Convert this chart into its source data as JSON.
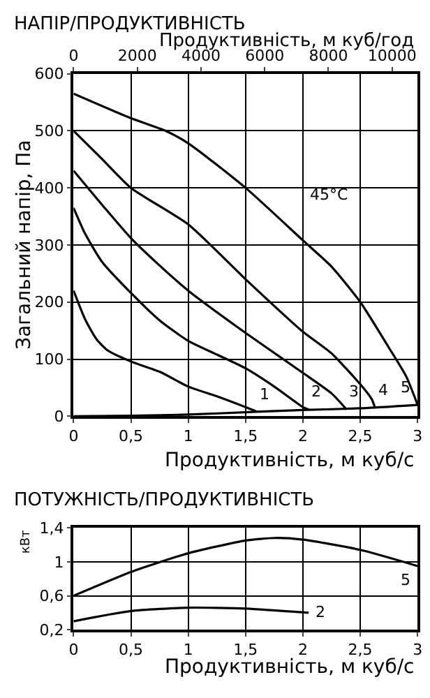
{
  "chart_data": [
    {
      "type": "line",
      "title": "НАПІР/ПРОДУКТИВНІСТЬ",
      "xlabel": "Продуктивність, м куб/с",
      "x2label": "Продуктивність, м куб/год",
      "ylabel": "Загальний напір, Па",
      "xlim": [
        0,
        3
      ],
      "xticks": [
        0,
        {
          "value": 0.5,
          "label": "0,5"
        },
        1,
        {
          "value": 1.5,
          "label": "1,5"
        },
        2,
        {
          "value": 2.5,
          "label": "2,5"
        },
        3
      ],
      "x2lim": [
        0,
        10800
      ],
      "x2ticks": [
        0,
        2000,
        4000,
        6000,
        8000,
        10000
      ],
      "ylim": [
        0,
        600
      ],
      "yticks": [
        0,
        100,
        200,
        300,
        400,
        500,
        600
      ],
      "grid": true,
      "legend": false,
      "marker": "none",
      "line_style": "solid",
      "annotations": [
        "45°C"
      ],
      "series": [
        {
          "name": "1",
          "color": "#000000",
          "x": [
            0,
            0.1,
            0.2,
            0.3,
            0.5,
            0.75,
            1,
            1.25,
            1.5,
            1.6
          ],
          "values": [
            220,
            170,
            135,
            115,
            96,
            78,
            52,
            35,
            16,
            8
          ]
        },
        {
          "name": "2",
          "color": "#000000",
          "x": [
            0,
            0.1,
            0.25,
            0.5,
            0.75,
            1,
            1.25,
            1.5,
            1.75,
            2.0,
            2.05
          ],
          "values": [
            365,
            320,
            270,
            216,
            168,
            132,
            108,
            84,
            52,
            16,
            12
          ]
        },
        {
          "name": "3",
          "color": "#000000",
          "x": [
            0,
            0.25,
            0.5,
            0.75,
            1,
            1.5,
            2,
            2.25,
            2.38
          ],
          "values": [
            430,
            370,
            312,
            264,
            220,
            146,
            76,
            40,
            12
          ]
        },
        {
          "name": "4",
          "color": "#000000",
          "x": [
            0,
            0.25,
            0.5,
            1,
            1.5,
            2,
            2.25,
            2.5,
            2.6,
            2.63
          ],
          "values": [
            500,
            450,
            400,
            336,
            240,
            148,
            110,
            56,
            30,
            14
          ]
        },
        {
          "name": "5",
          "color": "#000000",
          "x": [
            0,
            0.5,
            0.8,
            1,
            1.5,
            2,
            2.25,
            2.5,
            2.75,
            2.9,
            3
          ],
          "values": [
            565,
            522,
            500,
            478,
            400,
            308,
            262,
            200,
            120,
            70,
            20
          ]
        },
        {
          "color": "#000000",
          "x": [
            0,
            0.5,
            1,
            1.6,
            2,
            2.5,
            3
          ],
          "values": [
            0,
            1,
            3,
            8,
            11,
            14,
            20
          ]
        }
      ]
    },
    {
      "type": "line",
      "title": "ПОТУЖНІСТЬ/ПРОДУКТИВНІСТЬ",
      "xlabel": "Продуктивність, м куб/с",
      "ylabel": "кВт",
      "xlim": [
        0,
        3
      ],
      "xticks": [
        0,
        {
          "value": 0.5,
          "label": "0,5"
        },
        1,
        {
          "value": 1.5,
          "label": "1,5"
        },
        2,
        {
          "value": 2.5,
          "label": "2,5"
        },
        3
      ],
      "ylim": [
        0.2,
        1.4
      ],
      "yticks": [
        {
          "value": 0.2,
          "label": "0,2"
        },
        {
          "value": 0.6,
          "label": "0,6"
        },
        1,
        {
          "value": 1.4,
          "label": "1,4"
        }
      ],
      "grid": true,
      "legend": false,
      "marker": "none",
      "line_style": "solid",
      "series": [
        {
          "name": "5",
          "color": "#000000",
          "x": [
            0,
            0.5,
            1,
            1.5,
            1.75,
            2,
            2.5,
            3
          ],
          "values": [
            0.6,
            0.88,
            1.1,
            1.25,
            1.28,
            1.26,
            1.14,
            0.95
          ]
        },
        {
          "name": "2",
          "color": "#000000",
          "x": [
            0,
            0.5,
            1,
            1.5,
            2.05
          ],
          "values": [
            0.3,
            0.42,
            0.46,
            0.45,
            0.4
          ]
        }
      ]
    }
  ]
}
